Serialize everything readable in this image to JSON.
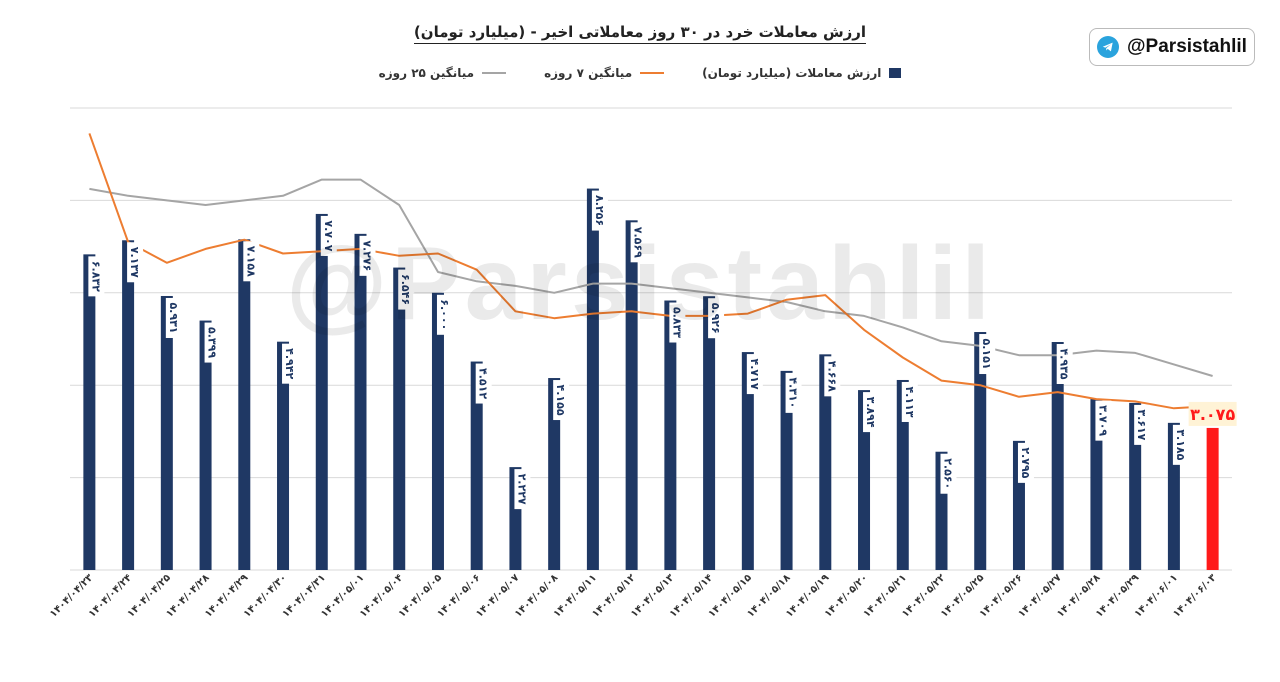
{
  "header": {
    "title": "ارزش معاملات خرد در ۳۰ روز معاملاتی اخیر - (میلیارد تومان)"
  },
  "badge": {
    "handle": "@Parsistahlil",
    "icon": "telegram-icon"
  },
  "watermark": "@Parsistahlil",
  "colors": {
    "bar": "#1f3864",
    "last_bar": "#ff1a1a",
    "ma7": "#ed7d31",
    "ma25": "#a5a5a5",
    "grid": "#d9d9d9"
  },
  "chart_data": {
    "type": "bar",
    "title": "ارزش معاملات خرد در ۳۰ روز معاملاتی اخیر - (میلیارد تومان)",
    "ylim": [
      0,
      10
    ],
    "grid": true,
    "legend_position": "top-center",
    "categories": [
      "۱۴۰۴/۰۴/۲۳",
      "۱۴۰۴/۰۴/۲۴",
      "۱۴۰۴/۰۴/۲۵",
      "۱۴۰۴/۰۴/۲۸",
      "۱۴۰۴/۰۴/۲۹",
      "۱۴۰۴/۰۴/۳۰",
      "۱۴۰۴/۰۴/۳۱",
      "۱۴۰۴/۰۵/۰۱",
      "۱۴۰۴/۰۵/۰۴",
      "۱۴۰۴/۰۵/۰۵",
      "۱۴۰۴/۰۵/۰۶",
      "۱۴۰۴/۰۵/۰۷",
      "۱۴۰۴/۰۵/۰۸",
      "۱۴۰۴/۰۵/۱۱",
      "۱۴۰۴/۰۵/۱۲",
      "۱۴۰۴/۰۵/۱۳",
      "۱۴۰۴/۰۵/۱۴",
      "۱۴۰۴/۰۵/۱۵",
      "۱۴۰۴/۰۵/۱۸",
      "۱۴۰۴/۰۵/۱۹",
      "۱۴۰۴/۰۵/۲۰",
      "۱۴۰۴/۰۵/۲۱",
      "۱۴۰۴/۰۵/۲۲",
      "۱۴۰۴/۰۵/۲۵",
      "۱۴۰۴/۰۵/۲۶",
      "۱۴۰۴/۰۵/۲۷",
      "۱۴۰۴/۰۵/۲۸",
      "۱۴۰۴/۰۵/۲۹",
      "۱۴۰۴/۰۶/۰۱",
      "۱۴۰۴/۰۶/۰۳"
    ],
    "series": [
      {
        "name": "ارزش معاملات (میلیارد تومان)",
        "type": "bar",
        "values": [
          6.832,
          7.137,
          5.931,
          5.399,
          7.158,
          4.942,
          7.707,
          7.276,
          6.546,
          6.0,
          4.512,
          2.227,
          4.155,
          8.256,
          7.569,
          5.833,
          5.926,
          4.717,
          4.31,
          4.668,
          3.894,
          4.113,
          2.56,
          5.151,
          2.795,
          4.935,
          3.709,
          3.617,
          3.185,
          3.075
        ],
        "labels": [
          "۶.۸۳۲",
          "۷.۱۳۷",
          "۵.۹۳۱",
          "۵.۳۹۹",
          "۷.۱۵۸",
          "۴.۹۴۲",
          "۷.۷۰۷",
          "۷.۲۷۶",
          "۶.۵۴۶",
          "۶.۰۰۰",
          "۴.۵۱۲",
          "۲.۲۲۷",
          "۴.۱۵۵",
          "۸.۲۵۶",
          "۷.۵۶۹",
          "۵.۸۳۳",
          "۵.۹۲۶",
          "۴.۷۱۷",
          "۴.۳۱۰",
          "۴.۶۶۸",
          "۳.۸۹۴",
          "۴.۱۱۳",
          "۲.۵۶۰",
          "۵.۱۵۱",
          "۲.۷۹۵",
          "۴.۹۳۵",
          "۳.۷۰۹",
          "۳.۶۱۷",
          "۳.۱۸۵",
          "۳.۰۷۵"
        ]
      },
      {
        "name": "میانگین ۷ روزه",
        "type": "line",
        "values": [
          9.45,
          7.1,
          6.65,
          6.95,
          7.15,
          6.85,
          6.9,
          6.95,
          6.8,
          6.85,
          6.5,
          5.6,
          5.45,
          5.55,
          5.6,
          5.5,
          5.5,
          5.55,
          5.85,
          5.95,
          5.2,
          4.6,
          4.1,
          4.0,
          3.75,
          3.85,
          3.7,
          3.65,
          3.5,
          3.55
        ]
      },
      {
        "name": "میانگین ۲۵ روزه",
        "type": "line",
        "values": [
          8.25,
          8.1,
          8.0,
          7.9,
          8.0,
          8.1,
          8.45,
          8.45,
          7.9,
          6.45,
          6.25,
          6.15,
          6.0,
          6.2,
          6.2,
          6.1,
          6.0,
          5.9,
          5.8,
          5.6,
          5.5,
          5.25,
          4.95,
          4.85,
          4.65,
          4.65,
          4.75,
          4.7,
          4.45,
          4.2
        ]
      }
    ]
  }
}
